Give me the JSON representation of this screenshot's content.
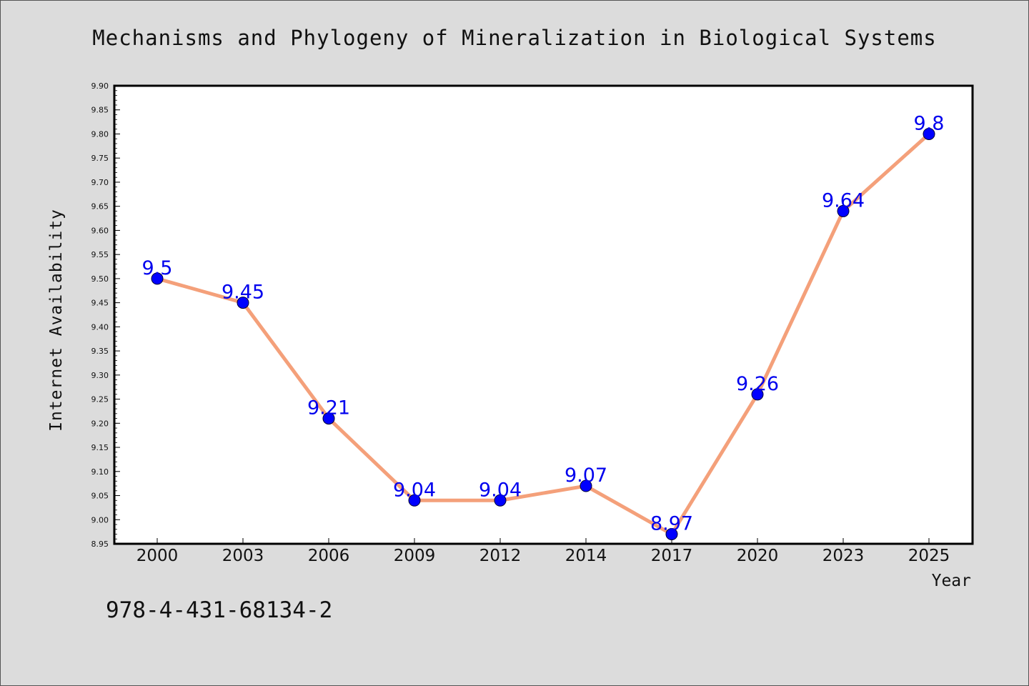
{
  "chart_data": {
    "type": "line",
    "title": "Mechanisms and Phylogeny of Mineralization in Biological Systems",
    "xlabel": "Year",
    "ylabel": "Internet Availability",
    "categories": [
      "2000",
      "2003",
      "2006",
      "2009",
      "2012",
      "2014",
      "2017",
      "2020",
      "2023",
      "2025"
    ],
    "series": [
      {
        "values": [
          9.5,
          9.45,
          9.21,
          9.04,
          9.04,
          9.07,
          8.97,
          9.26,
          9.64,
          9.8
        ],
        "data_labels": [
          "9.5",
          "9.45",
          "9.21",
          "9.04",
          "9.04",
          "9.07",
          "8.97",
          "9.26",
          "9.64",
          "9.8"
        ]
      }
    ],
    "ylim": [
      8.95,
      9.9
    ],
    "yticks": [
      "8.95",
      "9.00",
      "9.05",
      "9.10",
      "9.15",
      "9.20",
      "9.25",
      "9.30",
      "9.35",
      "9.40",
      "9.45",
      "9.50",
      "9.55",
      "9.60",
      "9.65",
      "9.70",
      "9.75",
      "9.80",
      "9.85",
      "9.90"
    ],
    "grid": false,
    "legend": "none",
    "colors": {
      "line": "#f4a07a",
      "marker_fill": "#0000ff",
      "marker_edge": "#000033",
      "data_label": "#0000ee",
      "background": "#dcdcdc",
      "plot_background": "#ffffff"
    }
  },
  "footer": {
    "isbn": "978-4-431-68134-2"
  }
}
